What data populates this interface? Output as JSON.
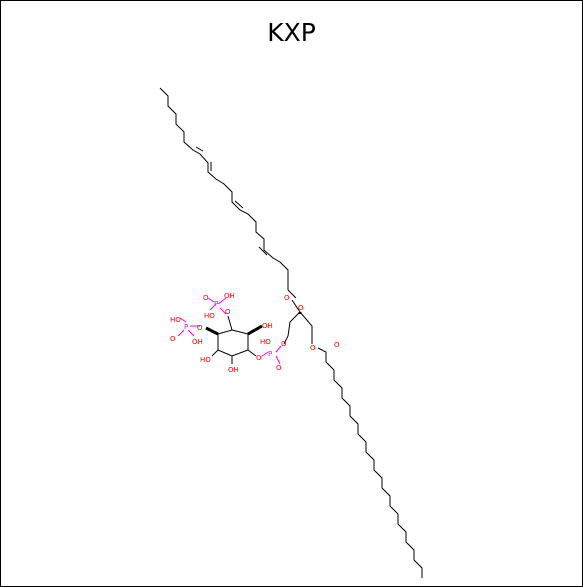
{
  "title": "KXP",
  "atom_labels": {
    "ester_o_chain1": "O",
    "carbonyl_o_chain1": "O",
    "ester_o_chain2": "O",
    "carbonyl_o_chain2": "O",
    "phosphate_bridge_o_glycerol": "O",
    "phosphate_p": "P",
    "phosphate_oh": "HO",
    "phosphate_o": "O",
    "phosphate_bridge_o_ring": "O",
    "ring_oh_top_right": "OH",
    "ring_oh_bottom": "OH",
    "ring_oh_left": "HO",
    "ring_o_p1": "O",
    "p1_p": "P",
    "p1_oh_a": "OH",
    "p1_oh_b": "HO",
    "p1_o": "O",
    "ring_o_p2": "O",
    "p2_p": "P",
    "p2_oh_a": "HO",
    "p2_oh_b": "OH",
    "p2_o": "O"
  },
  "colors": {
    "bond": "#000000",
    "oxygen": "#ff0000",
    "phosphorus": "#ff00ff",
    "background": "#ffffff"
  }
}
